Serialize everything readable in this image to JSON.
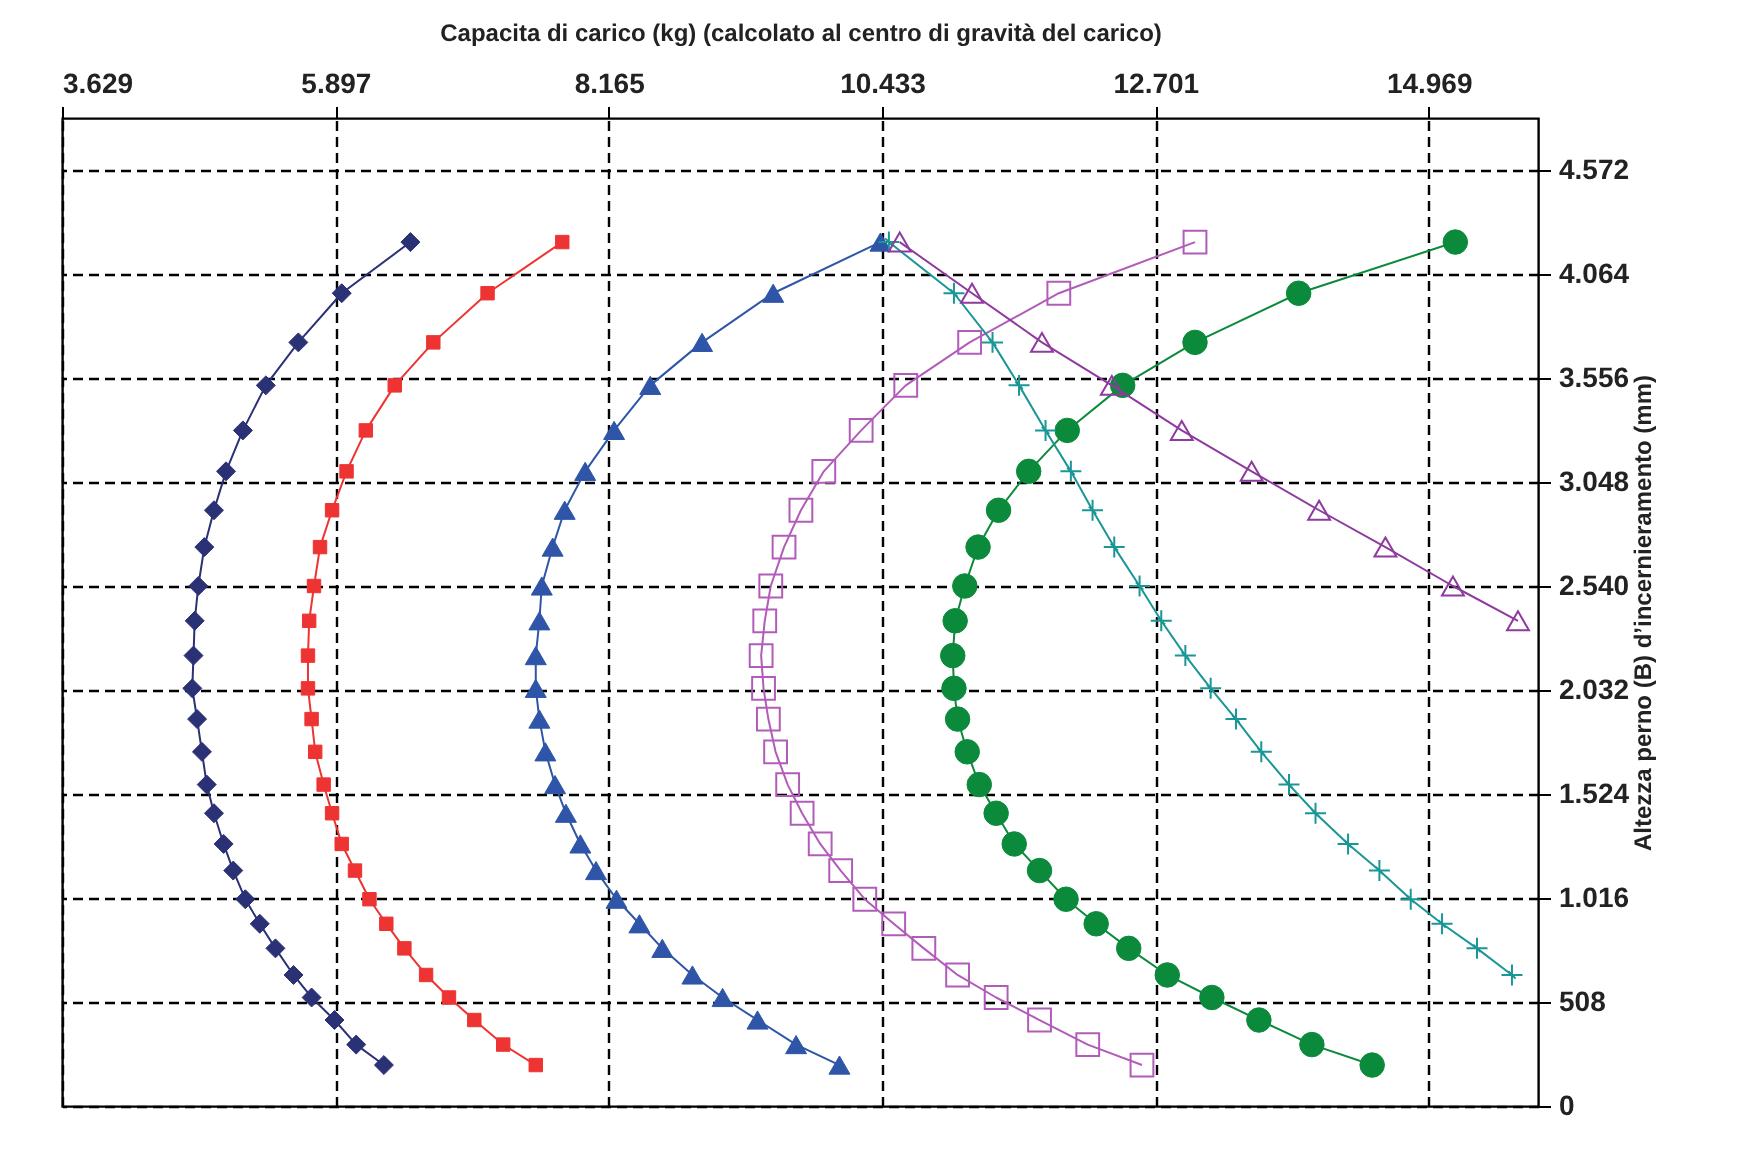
{
  "chart_data": {
    "type": "line",
    "xlabel": "Capacita di carico (kg) (calcolato al centro di gravità del carico)",
    "ylabel": "Altezza perno (B) d’incernieramento (mm)",
    "xlim": [
      3629,
      15876
    ],
    "xticks": [
      {
        "value": 3629,
        "label": "3.629"
      },
      {
        "value": 5897,
        "label": "5.897"
      },
      {
        "value": 8165,
        "label": "8.165"
      },
      {
        "value": 10433,
        "label": "10.433"
      },
      {
        "value": 12701,
        "label": "12.701"
      },
      {
        "value": 14969,
        "label": "14.969"
      }
    ],
    "ylim": [
      0,
      4826
    ],
    "yticks": [
      0,
      508,
      {
        "value": 1016,
        "label": "1.016"
      },
      {
        "value": 1524,
        "label": "1.524"
      },
      {
        "value": 2032,
        "label": "2.032"
      },
      {
        "value": 2540,
        "label": "2.540"
      },
      {
        "value": 3048,
        "label": "3.048"
      },
      {
        "value": 3556,
        "label": "3.556"
      },
      {
        "value": 4064,
        "label": "4.064"
      },
      {
        "value": 4572,
        "label": "4.572"
      }
    ],
    "grid": true,
    "line_style": "solid",
    "series": [
      {
        "color": "#2b3175",
        "marker": "diamond",
        "x": [
          6520,
          5950,
          5590,
          5320,
          5130,
          4990,
          4890,
          4810,
          4760,
          4730,
          4720,
          4710,
          4750,
          4790,
          4830,
          4890,
          4970,
          5050,
          5150,
          5270,
          5400,
          5550,
          5700,
          5890,
          6070,
          6300
        ],
        "values": [
          4220,
          3970,
          3730,
          3520,
          3300,
          3100,
          2910,
          2730,
          2540,
          2370,
          2200,
          2040,
          1890,
          1730,
          1570,
          1430,
          1280,
          1150,
          1010,
          890,
          770,
          640,
          530,
          420,
          300,
          200
        ]
      },
      {
        "color": "#ee3333",
        "marker": "square",
        "x": [
          7780,
          7160,
          6710,
          6390,
          6150,
          5990,
          5870,
          5770,
          5720,
          5680,
          5670,
          5670,
          5700,
          5730,
          5800,
          5870,
          5950,
          6060,
          6180,
          6320,
          6470,
          6650,
          6840,
          7050,
          7290,
          7560
        ],
        "values": [
          4220,
          3970,
          3730,
          3520,
          3300,
          3100,
          2910,
          2730,
          2540,
          2370,
          2200,
          2040,
          1890,
          1730,
          1570,
          1430,
          1280,
          1150,
          1010,
          890,
          770,
          640,
          530,
          420,
          300,
          200
        ]
      },
      {
        "color": "#2e55a8",
        "marker": "triangle",
        "x": [
          10420,
          9530,
          8940,
          8510,
          8210,
          7970,
          7800,
          7700,
          7610,
          7590,
          7560,
          7560,
          7590,
          7640,
          7720,
          7810,
          7930,
          8060,
          8230,
          8420,
          8610,
          8860,
          9110,
          9400,
          9720,
          10080
        ],
        "values": [
          4220,
          3970,
          3730,
          3520,
          3300,
          3100,
          2910,
          2730,
          2540,
          2370,
          2200,
          2040,
          1890,
          1730,
          1570,
          1430,
          1280,
          1150,
          1010,
          890,
          770,
          640,
          530,
          420,
          300,
          200
        ]
      },
      {
        "color": "#b25cba",
        "marker": "square-open",
        "x": [
          13030,
          11900,
          11160,
          10630,
          10260,
          9950,
          9760,
          9620,
          9510,
          9460,
          9430,
          9450,
          9490,
          9550,
          9650,
          9770,
          9920,
          10090,
          10290,
          10530,
          10780,
          11060,
          11380,
          11740,
          12140,
          12590
        ],
        "values": [
          4220,
          3970,
          3730,
          3520,
          3300,
          3100,
          2910,
          2730,
          2540,
          2370,
          2200,
          2040,
          1890,
          1730,
          1570,
          1430,
          1280,
          1150,
          1010,
          890,
          770,
          640,
          530,
          420,
          300,
          200
        ]
      },
      {
        "color": "#0c8a3c",
        "marker": "circle",
        "x": [
          15190,
          13890,
          13030,
          12430,
          11970,
          11650,
          11400,
          11230,
          11120,
          11040,
          11020,
          11030,
          11060,
          11140,
          11240,
          11380,
          11530,
          11740,
          11960,
          12210,
          12480,
          12800,
          13170,
          13560,
          14000,
          14500
        ],
        "values": [
          4220,
          3970,
          3730,
          3520,
          3300,
          3100,
          2910,
          2730,
          2540,
          2370,
          2200,
          2040,
          1890,
          1730,
          1570,
          1430,
          1280,
          1150,
          1010,
          890,
          770,
          640,
          530,
          420,
          300,
          200
        ]
      },
      {
        "color": "#1a9696",
        "marker": "cross",
        "x": [
          10490,
          11030,
          11350,
          11570,
          11790,
          12000,
          12180,
          12360,
          12570,
          12750,
          12950,
          13160,
          13370,
          13580,
          13810,
          14030,
          14300,
          14560,
          14820,
          15080,
          15370,
          15660
        ],
        "values": [
          4220,
          3970,
          3730,
          3520,
          3300,
          3100,
          2910,
          2730,
          2540,
          2370,
          2200,
          2040,
          1890,
          1730,
          1570,
          1430,
          1280,
          1150,
          1010,
          890,
          770,
          640
        ]
      },
      {
        "color": "#8e3a9e",
        "marker": "triangle-open",
        "x": [
          10580,
          11180,
          11760,
          12340,
          12920,
          13500,
          14060,
          14610,
          15170,
          15710
        ],
        "values": [
          4220,
          3970,
          3730,
          3520,
          3300,
          3100,
          2910,
          2730,
          2540,
          2370
        ]
      }
    ]
  }
}
